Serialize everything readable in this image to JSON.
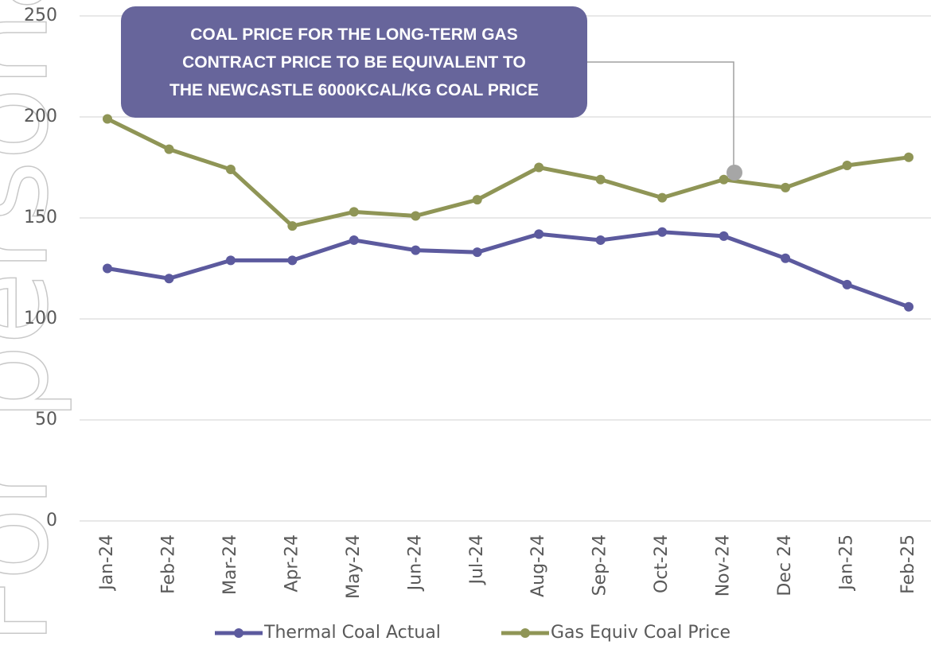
{
  "watermark": "For personal use only",
  "chart_data": {
    "type": "line",
    "annotation": "COAL PRICE FOR THE LONG-TERM GAS CONTRACT PRICE TO BE EQUIVALENT TO THE NEWCASTLE 6000KCAL/KG COAL PRICE",
    "categories": [
      "Jan-24",
      "Feb-24",
      "Mar-24",
      "Apr-24",
      "May-24",
      "Jun-24",
      "Jul-24",
      "Aug-24",
      "Sep-24",
      "Oct-24",
      "Nov-24",
      "Dec 24",
      "Jan-25",
      "Feb-25"
    ],
    "series": [
      {
        "name": "Thermal Coal Actual",
        "color": "#5c5a9e",
        "values": [
          125,
          120,
          129,
          129,
          139,
          134,
          133,
          142,
          139,
          143,
          141,
          130,
          117,
          106
        ]
      },
      {
        "name": "Gas Equiv Coal Price",
        "color": "#8f9556",
        "values": [
          199,
          184,
          174,
          146,
          153,
          151,
          159,
          175,
          169,
          160,
          169,
          165,
          176,
          180
        ]
      }
    ],
    "ylim": [
      0,
      250
    ],
    "yticks": [
      0,
      50,
      100,
      150,
      200,
      250
    ],
    "grid": true,
    "legend": "bottom"
  }
}
